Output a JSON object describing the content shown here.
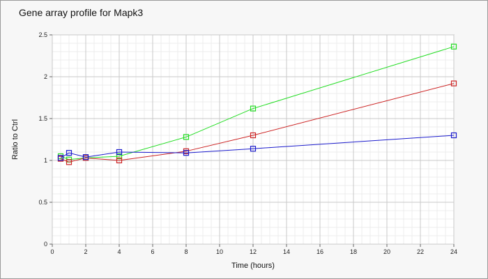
{
  "chart_data": {
    "type": "line",
    "title": "Gene array profile for Mapk3",
    "xlabel": "Time (hours)",
    "ylabel": "Ratio to Ctrl",
    "xlim": [
      0,
      24
    ],
    "ylim": [
      0,
      2.5
    ],
    "x_ticks": [
      0,
      2,
      4,
      6,
      8,
      10,
      12,
      14,
      16,
      18,
      20,
      22,
      24
    ],
    "y_ticks": [
      0,
      0.5,
      1,
      1.5,
      2,
      2.5
    ],
    "y_tick_labels": [
      "0",
      "0.5",
      "1",
      "1.5",
      "2",
      "2.5"
    ],
    "grid": true,
    "minor_grid": true,
    "marker": "square",
    "series": [
      {
        "color": "#22dd22",
        "points": [
          [
            0.5,
            1.05
          ],
          [
            1,
            1.01
          ],
          [
            2,
            1.03
          ],
          [
            4,
            1.05
          ],
          [
            8,
            1.28
          ],
          [
            12,
            1.62
          ],
          [
            24,
            2.36
          ]
        ]
      },
      {
        "color": "#cc2222",
        "points": [
          [
            0.5,
            1.02
          ],
          [
            1,
            0.98
          ],
          [
            2,
            1.03
          ],
          [
            4,
            1.0
          ],
          [
            8,
            1.11
          ],
          [
            12,
            1.3
          ],
          [
            24,
            1.92
          ]
        ]
      },
      {
        "color": "#1a1acc",
        "points": [
          [
            0.5,
            1.03
          ],
          [
            1,
            1.09
          ],
          [
            2,
            1.04
          ],
          [
            4,
            1.1
          ],
          [
            8,
            1.09
          ],
          [
            12,
            1.14
          ],
          [
            24,
            1.3
          ]
        ]
      }
    ]
  }
}
